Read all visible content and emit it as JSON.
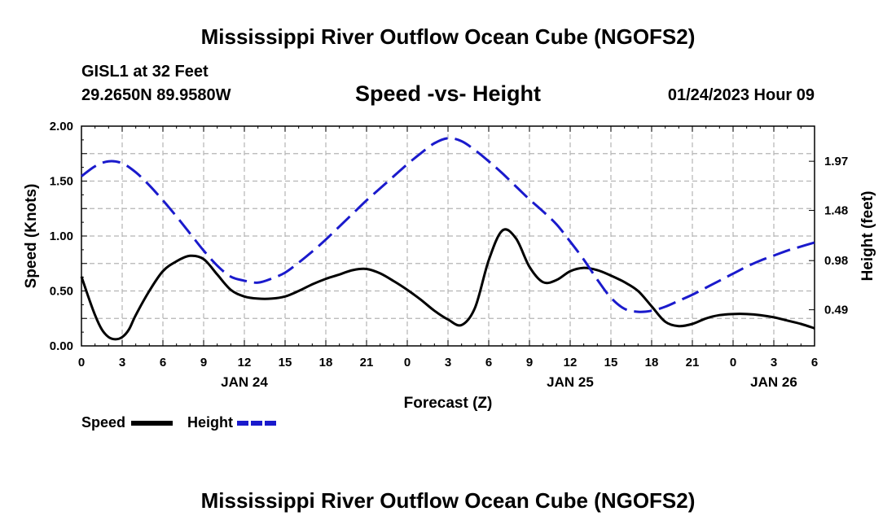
{
  "page": {
    "title_top": "Mississippi River Outflow Ocean Cube (NGOFS2)",
    "title_bottom": "Mississippi River Outflow Ocean Cube (NGOFS2)"
  },
  "header": {
    "station": "GISL1 at 32 Feet",
    "coords": "29.2650N  89.9580W",
    "forecast_time": "01/24/2023 Hour 09"
  },
  "legend": {
    "speed_label": "Speed",
    "height_label": "Height"
  },
  "colors": {
    "speed": "#000000",
    "height": "#1a1acc",
    "grid": "#b4b4b4"
  },
  "chart_data": {
    "type": "line",
    "title": "Speed -vs- Height",
    "xlabel": "Forecast (Z)",
    "ylabel": "Speed (Knots)",
    "y2label": "Height (feet)",
    "xlim": [
      0,
      54
    ],
    "ylim": [
      0,
      2.0
    ],
    "y2lim": [
      0.13,
      2.32
    ],
    "x_ticks": [
      {
        "x": 0,
        "label": "0"
      },
      {
        "x": 3,
        "label": "3"
      },
      {
        "x": 6,
        "label": "6"
      },
      {
        "x": 9,
        "label": "9"
      },
      {
        "x": 12,
        "label": "12"
      },
      {
        "x": 15,
        "label": "15"
      },
      {
        "x": 18,
        "label": "18"
      },
      {
        "x": 21,
        "label": "21"
      },
      {
        "x": 24,
        "label": "0"
      },
      {
        "x": 27,
        "label": "3"
      },
      {
        "x": 30,
        "label": "6"
      },
      {
        "x": 33,
        "label": "9"
      },
      {
        "x": 36,
        "label": "12"
      },
      {
        "x": 39,
        "label": "15"
      },
      {
        "x": 42,
        "label": "18"
      },
      {
        "x": 45,
        "label": "21"
      },
      {
        "x": 48,
        "label": "0"
      },
      {
        "x": 51,
        "label": "3"
      },
      {
        "x": 54,
        "label": "6"
      }
    ],
    "date_labels": [
      {
        "x": 12,
        "label": "JAN 24"
      },
      {
        "x": 36,
        "label": "JAN 25"
      },
      {
        "x": 51,
        "label": "JAN 26"
      }
    ],
    "y_ticks": [
      {
        "v": 0.0,
        "label": "0.00"
      },
      {
        "v": 0.5,
        "label": "0.50"
      },
      {
        "v": 1.0,
        "label": "1.00"
      },
      {
        "v": 1.5,
        "label": "1.50"
      },
      {
        "v": 2.0,
        "label": "2.00"
      }
    ],
    "y2_ticks": [
      {
        "v": 0.49,
        "label": "0.49"
      },
      {
        "v": 0.98,
        "label": "0.98"
      },
      {
        "v": 1.48,
        "label": "1.48"
      },
      {
        "v": 1.97,
        "label": "1.97"
      }
    ],
    "series": [
      {
        "name": "Speed",
        "axis": "left",
        "style": "solid",
        "x": [
          0,
          0.5,
          1,
          1.5,
          2,
          2.5,
          3,
          3.5,
          4,
          5,
          6,
          7,
          8,
          9,
          10,
          11,
          12,
          13,
          14,
          15,
          16,
          17,
          18,
          19,
          20,
          21,
          22,
          23,
          24,
          25,
          26,
          27,
          28,
          29,
          30,
          31,
          32,
          33,
          34,
          35,
          36,
          37,
          38,
          39,
          40,
          41,
          42,
          43,
          44,
          45,
          46,
          47,
          48,
          49,
          50,
          51,
          52,
          53,
          54
        ],
        "y": [
          0.63,
          0.45,
          0.28,
          0.15,
          0.08,
          0.06,
          0.08,
          0.15,
          0.28,
          0.5,
          0.68,
          0.77,
          0.82,
          0.79,
          0.65,
          0.51,
          0.45,
          0.43,
          0.43,
          0.45,
          0.5,
          0.56,
          0.61,
          0.65,
          0.69,
          0.7,
          0.66,
          0.59,
          0.51,
          0.42,
          0.32,
          0.24,
          0.19,
          0.35,
          0.78,
          1.05,
          0.98,
          0.72,
          0.58,
          0.6,
          0.68,
          0.71,
          0.69,
          0.64,
          0.58,
          0.5,
          0.36,
          0.22,
          0.18,
          0.2,
          0.25,
          0.28,
          0.29,
          0.29,
          0.28,
          0.26,
          0.23,
          0.2,
          0.16
        ]
      },
      {
        "name": "Height",
        "axis": "right",
        "style": "dashed",
        "x": [
          0,
          1,
          2,
          3,
          4,
          5,
          6,
          7,
          8,
          9,
          10,
          11,
          12,
          13,
          14,
          15,
          16,
          17,
          18,
          19,
          20,
          21,
          22,
          23,
          24,
          25,
          26,
          27,
          28,
          29,
          30,
          31,
          32,
          33,
          34,
          35,
          36,
          37,
          38,
          39,
          40,
          41,
          42,
          43,
          44,
          45,
          46,
          47,
          48,
          49,
          50,
          51,
          52,
          53,
          54
        ],
        "y": [
          1.82,
          1.92,
          1.97,
          1.95,
          1.86,
          1.73,
          1.58,
          1.42,
          1.25,
          1.08,
          0.93,
          0.82,
          0.78,
          0.76,
          0.8,
          0.86,
          0.96,
          1.07,
          1.19,
          1.32,
          1.45,
          1.58,
          1.7,
          1.82,
          1.94,
          2.05,
          2.15,
          2.2,
          2.17,
          2.08,
          1.97,
          1.85,
          1.72,
          1.59,
          1.47,
          1.34,
          1.17,
          0.99,
          0.79,
          0.61,
          0.5,
          0.47,
          0.48,
          0.52,
          0.58,
          0.64,
          0.71,
          0.78,
          0.85,
          0.92,
          0.98,
          1.03,
          1.08,
          1.12,
          1.16
        ]
      }
    ]
  }
}
